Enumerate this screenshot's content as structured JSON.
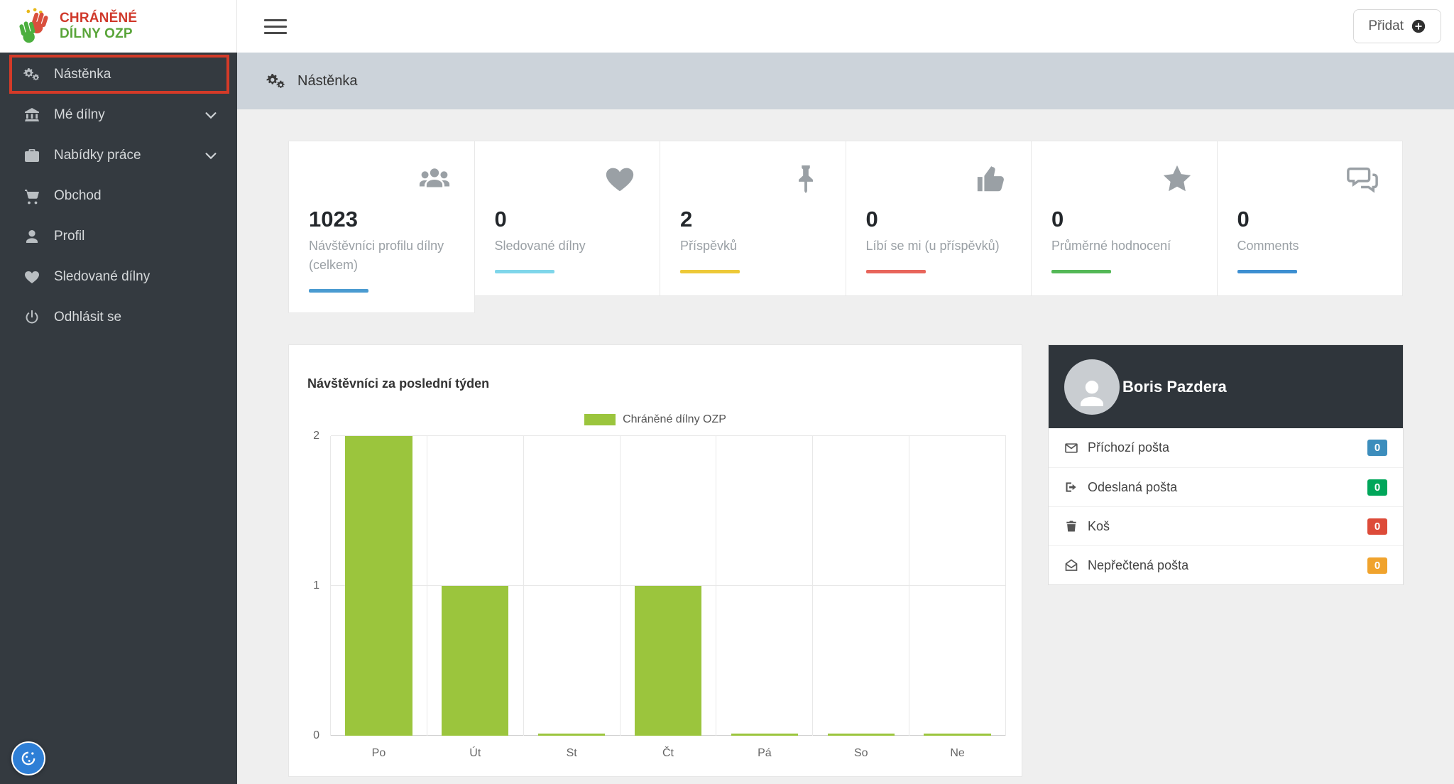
{
  "brand": {
    "line1": "CHRÁNĚNÉ",
    "line2": "DÍLNY OZP"
  },
  "topbar": {
    "add_button_label": "Přidat"
  },
  "page_header": {
    "title": "Nástěnka"
  },
  "sidebar": {
    "items": [
      {
        "id": "nastenka",
        "label": "Nástěnka",
        "icon": "cogs",
        "active": true,
        "highlighted": true
      },
      {
        "id": "me-dilny",
        "label": "Mé dílny",
        "icon": "bank",
        "chevron": true
      },
      {
        "id": "nabidky-prace",
        "label": "Nabídky práce",
        "icon": "briefcase",
        "chevron": true
      },
      {
        "id": "obchod",
        "label": "Obchod",
        "icon": "cart"
      },
      {
        "id": "profil",
        "label": "Profil",
        "icon": "user"
      },
      {
        "id": "sledovane-dilny",
        "label": "Sledované dílny",
        "icon": "heart"
      },
      {
        "id": "odhlasit-se",
        "label": "Odhlásit se",
        "icon": "power"
      }
    ]
  },
  "stats": [
    {
      "value": "1023",
      "label": "Návštěvníci profilu dílny (celkem)",
      "icon": "users",
      "accent": "#4a9bd1"
    },
    {
      "value": "0",
      "label": "Sledované dílny",
      "icon": "heart",
      "accent": "#7fd6ea"
    },
    {
      "value": "2",
      "label": "Příspěvků",
      "icon": "pin",
      "accent": "#edc938"
    },
    {
      "value": "0",
      "label": "Líbí se mi (u příspěvků)",
      "icon": "thumbs-up",
      "accent": "#e8655b"
    },
    {
      "value": "0",
      "label": "Průměrné hodnocení",
      "icon": "star",
      "accent": "#54b857"
    },
    {
      "value": "0",
      "label": "Comments",
      "icon": "comments",
      "accent": "#3d8fd1"
    }
  ],
  "chart_data": {
    "type": "bar",
    "title": "Návštěvníci za poslední týden",
    "legend": [
      {
        "label": "Chráněné dílny OZP",
        "color": "#9bc53d"
      }
    ],
    "categories": [
      "Po",
      "Út",
      "St",
      "Čt",
      "Pá",
      "So",
      "Ne"
    ],
    "values": [
      2,
      1,
      0,
      1,
      0,
      0,
      0
    ],
    "ylim": [
      0,
      2
    ],
    "yticks": [
      0,
      1,
      2
    ],
    "bar_color": "#9bc53d",
    "grid": true,
    "legend_position": "top-center"
  },
  "profile_panel": {
    "name": "Boris Pazdera",
    "rows": [
      {
        "id": "prichozi-posta",
        "label": "Příchozí pošta",
        "icon": "envelope",
        "badge": "0",
        "badge_color": "#3c8dbc"
      },
      {
        "id": "odeslana-posta",
        "label": "Odeslaná pošta",
        "icon": "send",
        "badge": "0",
        "badge_color": "#00a65a"
      },
      {
        "id": "kos",
        "label": "Koš",
        "icon": "trash",
        "badge": "0",
        "badge_color": "#dd4b39"
      },
      {
        "id": "neprectena-posta",
        "label": "Nepřečtená pošta",
        "icon": "envelope-open",
        "badge": "0",
        "badge_color": "#f0a32d"
      }
    ]
  }
}
